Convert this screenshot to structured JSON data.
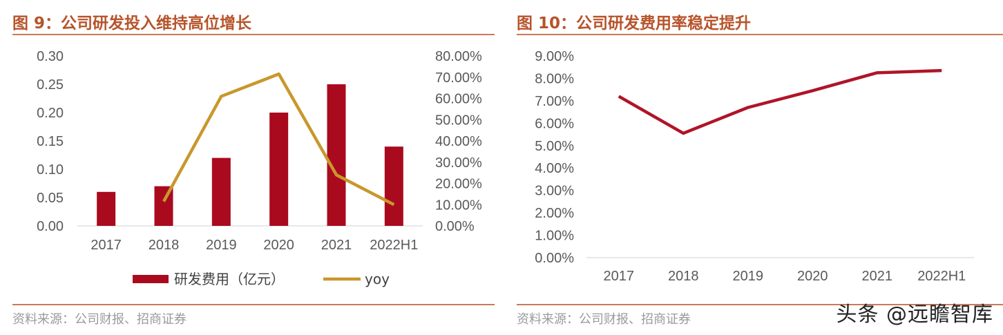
{
  "charts": [
    {
      "title": "图 9：公司研发投入维持高位增长",
      "source": "资料来源：公司财报、招商证券"
    },
    {
      "title": "图 10：公司研发费用率稳定提升",
      "source": "资料来源：公司财报、招商证券"
    }
  ],
  "watermark": "头条 @远瞻智库",
  "colors": {
    "bar": "#aa0a1e",
    "line": "#c9972c",
    "rate_line": "#b01428",
    "title": "#b7542b"
  },
  "chart_data": [
    {
      "type": "bar",
      "title": "图 9：公司研发投入维持高位增长",
      "categories": [
        "2017",
        "2018",
        "2019",
        "2020",
        "2021",
        "2022H1"
      ],
      "series": [
        {
          "name": "研发费用（亿元）",
          "type": "bar",
          "axis": "left",
          "values": [
            0.06,
            0.07,
            0.12,
            0.2,
            0.25,
            0.14
          ]
        },
        {
          "name": "yoy",
          "type": "line",
          "axis": "right",
          "values": [
            null,
            11.5,
            61,
            71.5,
            24,
            10
          ]
        }
      ],
      "y_left": {
        "range": [
          0,
          0.3
        ],
        "ticks": [
          "0.00",
          "0.05",
          "0.10",
          "0.15",
          "0.20",
          "0.25",
          "0.30"
        ]
      },
      "y_right": {
        "range": [
          0,
          80
        ],
        "ticks": [
          "0.00%",
          "10.00%",
          "20.00%",
          "30.00%",
          "40.00%",
          "50.00%",
          "60.00%",
          "70.00%",
          "80.00%"
        ]
      },
      "legend": "bottom",
      "grid": false
    },
    {
      "type": "line",
      "title": "图 10：公司研发费用率稳定提升",
      "categories": [
        "2017",
        "2018",
        "2019",
        "2020",
        "2021",
        "2022H1"
      ],
      "series": [
        {
          "values": [
            7.2,
            5.55,
            6.7,
            7.45,
            8.25,
            8.35
          ]
        }
      ],
      "y": {
        "range": [
          0,
          9
        ],
        "ticks": [
          "0.00%",
          "1.00%",
          "2.00%",
          "3.00%",
          "4.00%",
          "5.00%",
          "6.00%",
          "7.00%",
          "8.00%",
          "9.00%"
        ]
      },
      "legend": "none",
      "grid": false
    }
  ]
}
